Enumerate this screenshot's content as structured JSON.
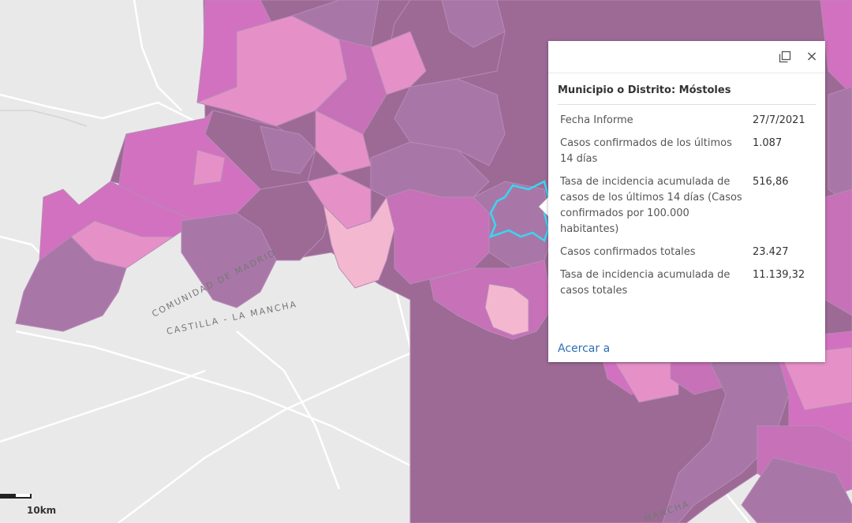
{
  "map": {
    "region_label_upper": "COMUNIDAD DE MADRID",
    "region_label_lower": "CASTILLA - LA MANCHA",
    "region_label_east": "MANCHA",
    "highlight_color": "#38d7f2",
    "palette": {
      "dark": "#9c6a95",
      "deep": "#a877a7",
      "mid": "#c671b8",
      "bright": "#d271c0",
      "light": "#e591c8",
      "pale": "#f3b7d0",
      "background": "#e9e9e9",
      "road": "#ffffff"
    }
  },
  "popup": {
    "dock_icon": "dock-window-icon",
    "close_icon": "close-icon",
    "close_glyph": "×",
    "title": "Municipio o Distrito: Móstoles",
    "rows": [
      {
        "label": "Fecha Informe",
        "value": "27/7/2021"
      },
      {
        "label": "Casos confirmados de los últimos 14 días",
        "value": "1.087"
      },
      {
        "label": "Tasa de incidencia acumulada de casos de los últimos 14 días (Casos confirmados por 100.000 habitantes)",
        "value": "516,86"
      },
      {
        "label": "Casos confirmados totales",
        "value": "23.427"
      },
      {
        "label": "Tasa de incidencia acumulada de casos totales",
        "value": "11.139,32"
      }
    ],
    "zoom_link": "Acercar a"
  },
  "scale": {
    "label": "10km"
  }
}
